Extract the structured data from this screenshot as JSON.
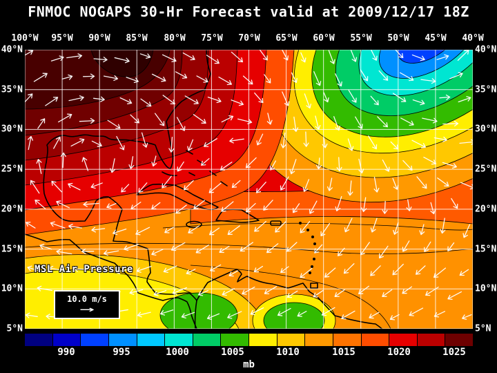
{
  "title": "FNMOC NOGAPS 30-Hr Forecast valid at 2009/12/17 18Z",
  "map": {
    "layer_label": "MSL Air Pressure",
    "wind_scale_label": "10.0 m/s",
    "lon_labels": [
      "100°W",
      "95°W",
      "90°W",
      "85°W",
      "80°W",
      "75°W",
      "70°W",
      "65°W",
      "60°W",
      "55°W",
      "50°W",
      "45°W",
      "40°W"
    ],
    "lat_labels": [
      "40°N",
      "35°N",
      "30°N",
      "25°N",
      "20°N",
      "15°N",
      "10°N",
      "5°N"
    ]
  },
  "colorbar": {
    "unit": "mb",
    "tick_labels": [
      "990",
      "995",
      "1000",
      "1005",
      "1010",
      "1015",
      "1020",
      "1025"
    ],
    "colors": [
      "#000080",
      "#0000c8",
      "#0040ff",
      "#0090ff",
      "#00c8ff",
      "#00e6d2",
      "#00cc66",
      "#33bb00",
      "#ffee00",
      "#ffc800",
      "#ff9900",
      "#ff7300",
      "#ff4d00",
      "#e60000",
      "#bb0000",
      "#6e0000"
    ]
  },
  "icons": {
    "wind_scale_arrow": "→"
  },
  "chart_data": {
    "type": "heatmap",
    "title": "MSL Air Pressure",
    "unit": "mb",
    "scale_ticks": [
      990,
      995,
      1000,
      1005,
      1010,
      1015,
      1020,
      1025
    ],
    "lon_range": [
      "100°W",
      "40°W"
    ],
    "lat_range": [
      "5°N",
      "40°N"
    ],
    "features": [
      {
        "name": "high-pressure-area",
        "location": "northwest (SE United States / Gulf coast)",
        "value_mb": "≥1025"
      },
      {
        "name": "low-pressure-trough",
        "location": "northeast Atlantic corner",
        "value_mb": "≈995"
      },
      {
        "name": "low-pressure-patches",
        "location": "south near Panama / Colombia",
        "value_mb": "≈1005"
      }
    ]
  }
}
